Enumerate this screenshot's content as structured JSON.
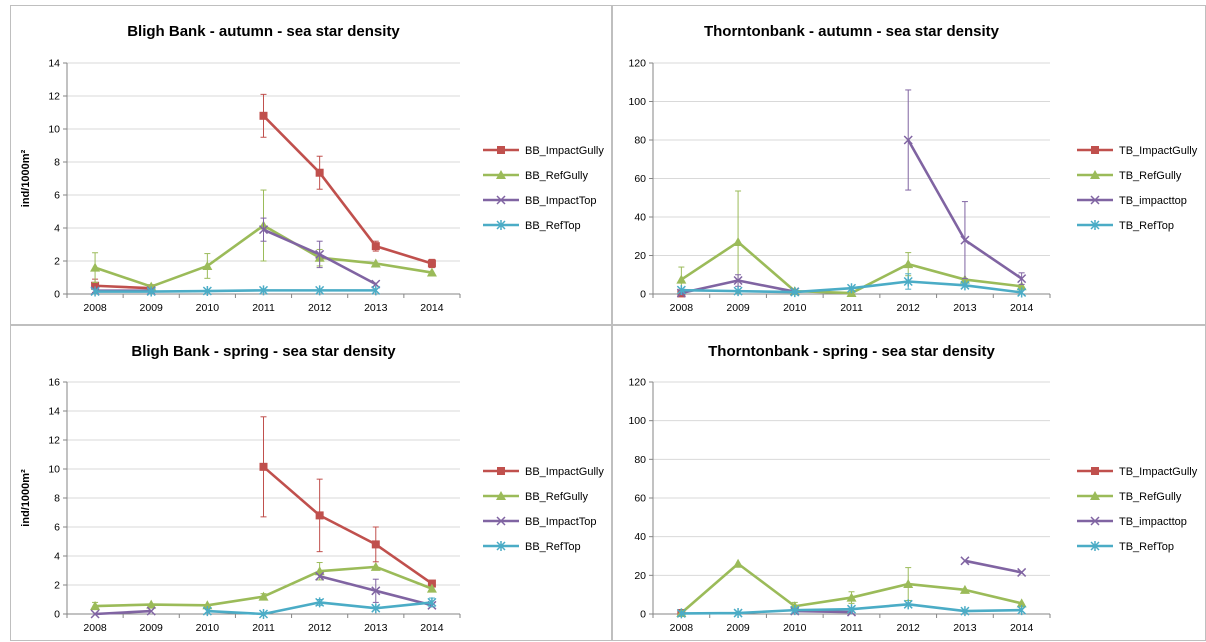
{
  "chart_data": [
    {
      "type": "line",
      "title": "Bligh Bank - autumn - sea star density",
      "ylabel": "ind/1000m²",
      "xlabel": "",
      "categories": [
        "2008",
        "2009",
        "2010",
        "2011",
        "2012",
        "2013",
        "2014"
      ],
      "ylim": [
        0,
        14
      ],
      "yticks": [
        0,
        2,
        4,
        6,
        8,
        10,
        12,
        14
      ],
      "grid": true,
      "legend_position": "right",
      "series": [
        {
          "name": "BB_ImpactGully",
          "color": "#c0504d",
          "marker": "square",
          "values": [
            0.5,
            0.35,
            null,
            10.8,
            7.35,
            2.9,
            1.85
          ],
          "errors": [
            0.4,
            0,
            null,
            1.3,
            1.0,
            0.3,
            0.25
          ]
        },
        {
          "name": "BB_RefGully",
          "color": "#9bbb59",
          "marker": "triangle",
          "values": [
            1.6,
            0.45,
            1.7,
            4.15,
            2.2,
            1.85,
            1.3
          ],
          "errors": [
            0.9,
            0,
            0.75,
            2.15,
            0.5,
            0,
            0
          ]
        },
        {
          "name": "BB_ImpactTop",
          "color": "#8064a2",
          "marker": "x",
          "values": [
            0.2,
            0.2,
            null,
            3.9,
            2.4,
            0.6,
            null
          ],
          "errors": [
            0,
            0,
            null,
            0.7,
            0.8,
            0,
            null
          ]
        },
        {
          "name": "BB_RefTop",
          "color": "#4bacc6",
          "marker": "star",
          "values": [
            0.15,
            0.15,
            0.18,
            0.22,
            0.22,
            0.22,
            null
          ],
          "errors": [
            0,
            0,
            0,
            0,
            0,
            0,
            null
          ]
        }
      ]
    },
    {
      "type": "line",
      "title": "Thorntonbank - autumn - sea star density",
      "ylabel": "",
      "xlabel": "",
      "categories": [
        "2008",
        "2009",
        "2010",
        "2011",
        "2012",
        "2013",
        "2014"
      ],
      "ylim": [
        0,
        120
      ],
      "yticks": [
        0,
        20,
        40,
        60,
        80,
        100,
        120
      ],
      "grid": true,
      "legend_position": "right",
      "series": [
        {
          "name": "TB_ImpactGully",
          "color": "#c0504d",
          "marker": "square",
          "values": [
            0.3,
            null,
            null,
            null,
            null,
            null,
            null
          ],
          "errors": [
            0,
            null,
            null,
            null,
            null,
            null,
            null
          ]
        },
        {
          "name": "TB_RefGully",
          "color": "#9bbb59",
          "marker": "triangle",
          "values": [
            7.5,
            27,
            1.5,
            0.5,
            15.5,
            7.5,
            4
          ],
          "errors": [
            6.5,
            26.5,
            0,
            0,
            6,
            0,
            0
          ]
        },
        {
          "name": "TB_impacttop",
          "color": "#8064a2",
          "marker": "x",
          "values": [
            0.5,
            7,
            1.2,
            null,
            80,
            28,
            8
          ],
          "errors": [
            0,
            3,
            0,
            null,
            26,
            20,
            3
          ]
        },
        {
          "name": "TB_RefTop",
          "color": "#4bacc6",
          "marker": "star",
          "values": [
            2,
            1.5,
            1,
            3,
            6.5,
            4.5,
            0.8
          ],
          "errors": [
            0,
            0,
            0,
            0,
            4,
            0,
            0
          ]
        }
      ]
    },
    {
      "type": "line",
      "title": "Bligh Bank - spring - sea star density",
      "ylabel": "ind/1000m²",
      "xlabel": "",
      "categories": [
        "2008",
        "2009",
        "2010",
        "2011",
        "2012",
        "2013",
        "2014"
      ],
      "ylim": [
        0,
        16
      ],
      "yticks": [
        0,
        2,
        4,
        6,
        8,
        10,
        12,
        14,
        16
      ],
      "grid": true,
      "legend_position": "right",
      "series": [
        {
          "name": "BB_ImpactGully",
          "color": "#c0504d",
          "marker": "square",
          "values": [
            null,
            null,
            null,
            10.15,
            6.8,
            4.8,
            2.1
          ],
          "errors": [
            null,
            null,
            null,
            3.45,
            2.5,
            1.2,
            0
          ]
        },
        {
          "name": "BB_RefGully",
          "color": "#9bbb59",
          "marker": "triangle",
          "values": [
            0.55,
            0.65,
            0.6,
            1.2,
            2.95,
            3.25,
            1.75
          ],
          "errors": [
            0.25,
            0,
            0,
            0.2,
            0.6,
            0,
            0
          ]
        },
        {
          "name": "BB_ImpactTop",
          "color": "#8064a2",
          "marker": "x",
          "values": [
            0,
            0.2,
            null,
            null,
            2.6,
            1.6,
            0.6
          ],
          "errors": [
            0,
            0,
            null,
            null,
            0,
            0.8,
            0
          ]
        },
        {
          "name": "BB_RefTop",
          "color": "#4bacc6",
          "marker": "star",
          "values": [
            null,
            null,
            0.2,
            0,
            0.8,
            0.4,
            0.8
          ],
          "errors": [
            null,
            null,
            0,
            0,
            0.2,
            0,
            0.3
          ]
        }
      ]
    },
    {
      "type": "line",
      "title": "Thorntonbank - spring - sea star density",
      "ylabel": "",
      "xlabel": "",
      "categories": [
        "2008",
        "2009",
        "2010",
        "2011",
        "2012",
        "2013",
        "2014"
      ],
      "ylim": [
        0,
        120
      ],
      "yticks": [
        0,
        20,
        40,
        60,
        80,
        100,
        120
      ],
      "grid": true,
      "legend_position": "right",
      "series": [
        {
          "name": "TB_ImpactGully",
          "color": "#c0504d",
          "marker": "square",
          "values": [
            0.5,
            null,
            null,
            null,
            null,
            null,
            null
          ],
          "errors": [
            0,
            null,
            null,
            null,
            null,
            null,
            null
          ]
        },
        {
          "name": "TB_RefGully",
          "color": "#9bbb59",
          "marker": "triangle",
          "values": [
            0.5,
            26,
            4,
            8.5,
            15.5,
            12.5,
            5.5
          ],
          "errors": [
            0,
            0,
            2,
            3,
            8.5,
            0,
            0
          ]
        },
        {
          "name": "TB_impacttop",
          "color": "#8064a2",
          "marker": "x",
          "values": [
            null,
            null,
            1.5,
            1,
            null,
            27.5,
            21.5
          ],
          "errors": [
            null,
            null,
            0,
            0,
            null,
            0,
            0
          ]
        },
        {
          "name": "TB_RefTop",
          "color": "#4bacc6",
          "marker": "star",
          "values": [
            0.3,
            0.5,
            2,
            2.5,
            5,
            1.5,
            2
          ],
          "errors": [
            0,
            0,
            0,
            0,
            0,
            0,
            0
          ]
        }
      ]
    }
  ]
}
